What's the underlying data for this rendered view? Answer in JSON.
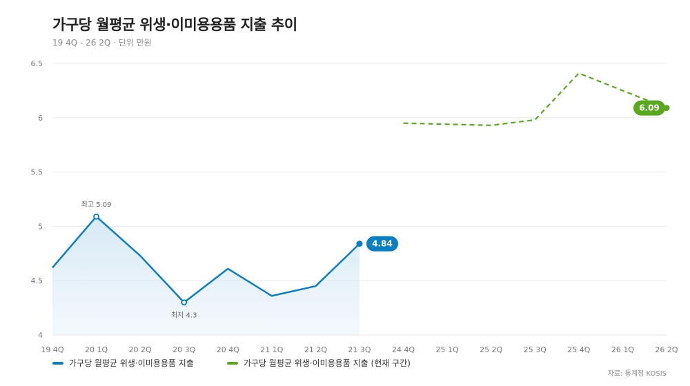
{
  "title": "가구당 월평균 위생·이미용용품 지출 추이",
  "subtitle": "19 4Q - 26 2Q · 단위 만원",
  "source": "자료: 통계청 KOSIS",
  "colors": {
    "actual": "#0a7ec2",
    "forecast": "#5aa820",
    "grid": "#e9e9e9",
    "area": "#d6e8f5"
  },
  "chart_data": {
    "type": "line",
    "categories": [
      "19 4Q",
      "20 1Q",
      "20 2Q",
      "20 3Q",
      "20 4Q",
      "21 1Q",
      "21 2Q",
      "21 3Q",
      "24 4Q",
      "25 1Q",
      "25 2Q",
      "25 3Q",
      "25 4Q",
      "26 1Q",
      "26 2Q"
    ],
    "ylim": [
      4,
      6.5
    ],
    "yticks": [
      4,
      4.5,
      5,
      5.5,
      6,
      6.5
    ],
    "ytick_labels": [
      "4",
      "4.5",
      "5",
      "5.5",
      "6",
      "6.5"
    ],
    "grid": true,
    "legend_position": "bottom-left",
    "series": [
      {
        "name": "가구당 월평균 위생·이미용용품 지출",
        "style": "solid-area",
        "values": [
          4.62,
          5.09,
          4.73,
          4.3,
          4.61,
          4.36,
          4.45,
          4.84,
          null,
          null,
          null,
          null,
          null,
          null,
          null
        ]
      },
      {
        "name": "가구당 월평균 위생·이미용용품 지출 (현재 구간)",
        "style": "dashed",
        "values": [
          null,
          null,
          null,
          null,
          null,
          null,
          null,
          null,
          5.95,
          null,
          5.93,
          5.98,
          6.41,
          null,
          6.09
        ]
      }
    ],
    "annotations": [
      {
        "label": "최고 5.09",
        "category": "20 1Q",
        "value": 5.09,
        "position": "above"
      },
      {
        "label": "최저 4.3",
        "category": "20 3Q",
        "value": 4.3,
        "position": "below"
      }
    ],
    "end_labels": [
      {
        "series": 0,
        "text": "4.84"
      },
      {
        "series": 1,
        "text": "6.09"
      }
    ]
  }
}
